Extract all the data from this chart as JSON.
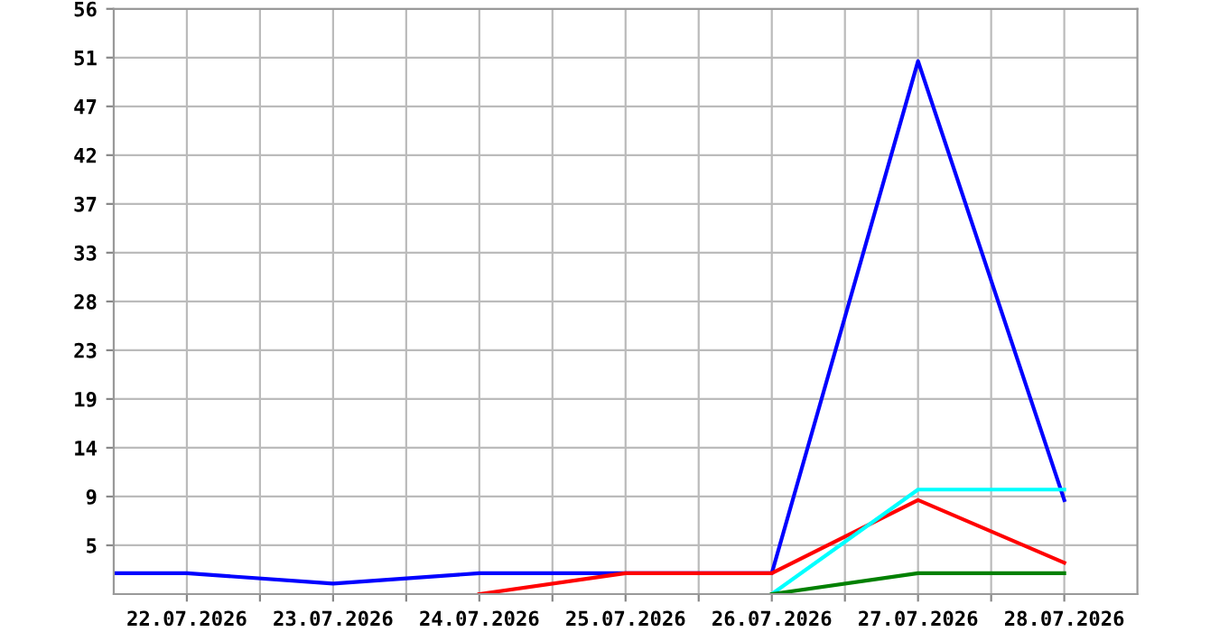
{
  "chart_data": {
    "type": "line",
    "series": [
      {
        "color": "#0000ff",
        "x": [
          "2026-07-21T12:00",
          "2026-07-22",
          "2026-07-23",
          "2026-07-24",
          "2026-07-25",
          "2026-07-26",
          "2026-07-27",
          "2026-07-28"
        ],
        "values": [
          2,
          2,
          1,
          2,
          2,
          2,
          51,
          9
        ]
      },
      {
        "color": "#ff0000",
        "x": [
          "2026-07-24",
          "2026-07-25",
          "2026-07-26",
          "2026-07-27",
          "2026-07-28"
        ],
        "values": [
          0,
          2,
          2,
          9,
          3
        ]
      },
      {
        "color": "#00ffff",
        "x": [
          "2026-07-26",
          "2026-07-27",
          "2026-07-28"
        ],
        "values": [
          0,
          10,
          10
        ]
      },
      {
        "color": "#008000",
        "x": [
          "2026-07-26",
          "2026-07-27",
          "2026-07-28"
        ],
        "values": [
          0,
          2,
          2
        ]
      }
    ],
    "xlim": [
      "2026-07-21T12:00",
      "2026-07-28T12:00"
    ],
    "xticks": [
      {
        "value": "2026-07-22",
        "label": "22.07.2026"
      },
      {
        "value": "2026-07-22T12:00",
        "label": null
      },
      {
        "value": "2026-07-23",
        "label": "23.07.2026"
      },
      {
        "value": "2026-07-23T12:00",
        "label": null
      },
      {
        "value": "2026-07-24",
        "label": "24.07.2026"
      },
      {
        "value": "2026-07-24T12:00",
        "label": null
      },
      {
        "value": "2026-07-25",
        "label": "25.07.2026"
      },
      {
        "value": "2026-07-25T12:00",
        "label": null
      },
      {
        "value": "2026-07-26",
        "label": "26.07.2026"
      },
      {
        "value": "2026-07-26T12:00",
        "label": null
      },
      {
        "value": "2026-07-27",
        "label": "27.07.2026"
      },
      {
        "value": "2026-07-27T12:00",
        "label": null
      },
      {
        "value": "2026-07-28",
        "label": "28.07.2026"
      }
    ],
    "ylim": [
      0,
      56
    ],
    "yticks": [
      {
        "value": 4.667,
        "label": "5"
      },
      {
        "value": 9.333,
        "label": "9"
      },
      14,
      {
        "value": 18.667,
        "label": "19"
      },
      {
        "value": 23.333,
        "label": "23"
      },
      28,
      {
        "value": 32.667,
        "label": "33"
      },
      {
        "value": 37.333,
        "label": "37"
      },
      42,
      {
        "value": 46.667,
        "label": "47"
      },
      {
        "value": 51.333,
        "label": "51"
      },
      56
    ],
    "grid": true,
    "legend": false,
    "marker": "none",
    "line_style": "solid"
  }
}
